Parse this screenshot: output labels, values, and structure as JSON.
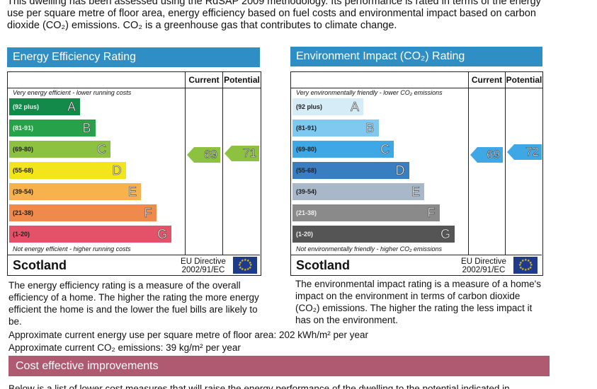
{
  "intro": "This dwelling has been assessed using the RdSAP 2009 methodology. Its performance is rated in terms of the energy use per square metre of floor area, energy efficiency based on fuel costs and environmental impact based on carbon dioxide (CO₂) emissions. CO₂ is a greenhouse gas that contributes to climate change.",
  "energy": {
    "title": "Energy Efficiency Rating",
    "col_current": "Current",
    "col_potential": "Potential",
    "top_note": "Very energy efficient - lower running costs",
    "bottom_note": "Not energy efficient - higher running costs",
    "current": "69",
    "potential": "71",
    "current_value": 69,
    "potential_value": 71,
    "bands": [
      {
        "range": "(92 plus)",
        "letter": "A",
        "color": "#138a4a"
      },
      {
        "range": "(81-91)",
        "letter": "B",
        "color": "#27a24a"
      },
      {
        "range": "(69-80)",
        "letter": "C",
        "color": "#8cc23f"
      },
      {
        "range": "(55-68)",
        "letter": "D",
        "color": "#f2e51c"
      },
      {
        "range": "(39-54)",
        "letter": "E",
        "color": "#f7b24d"
      },
      {
        "range": "(21-38)",
        "letter": "F",
        "color": "#ef8a4c"
      },
      {
        "range": "(1-20)",
        "letter": "G",
        "color": "#e4526a"
      }
    ],
    "footer_country": "Scotland",
    "footer_eu_line1": "EU Directive",
    "footer_eu_line2": "2002/91/EC",
    "description": "The energy efficiency rating is a measure of the overall efficiency of a home. The higher the rating the more energy efficient the home is and the lower the fuel bills are likely to be."
  },
  "environment": {
    "title": "Environment Impact (CO₂) Rating",
    "col_current": "Current",
    "col_potential": "Potential",
    "top_note": "Very environmentally friendly - lower CO₂ emissions",
    "bottom_note": "Not environmentally friendly - higher CO₂ emissions",
    "current": "69",
    "potential": "72",
    "current_value": 69,
    "potential_value": 72,
    "bands": [
      {
        "range": "(92 plus)",
        "letter": "A",
        "color": "#d6edf8"
      },
      {
        "range": "(81-91)",
        "letter": "B",
        "color": "#7fc8ef"
      },
      {
        "range": "(69-80)",
        "letter": "C",
        "color": "#3ea7e6"
      },
      {
        "range": "(55-68)",
        "letter": "D",
        "color": "#3a7ec2"
      },
      {
        "range": "(39-54)",
        "letter": "E",
        "color": "#a9b8c8"
      },
      {
        "range": "(21-38)",
        "letter": "F",
        "color": "#8a8a8a"
      },
      {
        "range": "(1-20)",
        "letter": "G",
        "color": "#555555"
      }
    ],
    "footer_country": "Scotland",
    "footer_eu_line1": "EU Directive",
    "footer_eu_line2": "2002/91/EC",
    "description": "The environmental impact rating is a measure of a home's impact on the environment in terms of carbon dioxide (CO₂) emissions. The higher the rating the less impact it has on the environment."
  },
  "approx_energy": "Approximate current energy use per square metre of floor area: 202 kWh/m² per year",
  "approx_co2": "Approximate current CO₂ emissions: 39 kg/m² per year",
  "improvements_title": "Cost effective improvements",
  "bottom_text": "Below is a list of lower cost measures that will raise the energy performance of the dwelling to the potential indicated in",
  "colors": {
    "energy_header": "#2f8fc4",
    "environment_header": "#2f8fc4",
    "improvements_header": "#b05a72",
    "arrow_energy": "#8cc23f",
    "arrow_environment": "#3ea7e6"
  }
}
